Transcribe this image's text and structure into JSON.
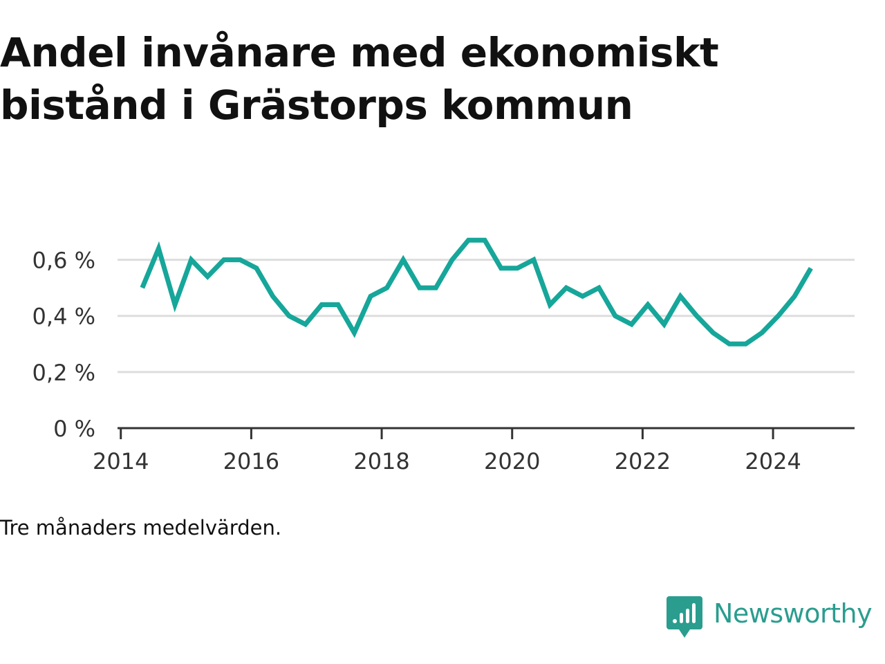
{
  "title": "Andel invånare med ekonomiskt bistånd i Grästorps kommun",
  "footnote": "Tre månaders medelvärden.",
  "brand": {
    "name": "Newsworthy",
    "icon": "newsworthy-logo-icon"
  },
  "colors": {
    "line": "#16a69a",
    "grid": "#dddddd",
    "axis": "#333333",
    "brand": "#2a9d8f"
  },
  "chart_data": {
    "type": "line",
    "title": "Andel invånare med ekonomiskt bistånd i Grästorps kommun",
    "xlabel": "",
    "ylabel": "",
    "xlim": [
      2013.95,
      2025.25
    ],
    "ylim": [
      0,
      0.7
    ],
    "x_ticks": [
      2014,
      2016,
      2018,
      2020,
      2022,
      2024
    ],
    "x_tick_labels": [
      "2014",
      "2016",
      "2018",
      "2020",
      "2022",
      "2024"
    ],
    "y_ticks": [
      0,
      0.2,
      0.4,
      0.6
    ],
    "y_tick_labels": [
      "0 %",
      "0,2 %",
      "0,4 %",
      "0,6 %"
    ],
    "grid": "horizontal",
    "legend": "none",
    "series": [
      {
        "x": [
          2014.33,
          2014.58,
          2014.83,
          2015.08,
          2015.33,
          2015.58,
          2015.83,
          2016.08,
          2016.33,
          2016.58,
          2016.83,
          2017.08,
          2017.33,
          2017.58,
          2017.83,
          2018.08,
          2018.33,
          2018.58,
          2018.83,
          2019.08,
          2019.33,
          2019.58,
          2019.83,
          2020.08,
          2020.33,
          2020.58,
          2020.83,
          2021.08,
          2021.33,
          2021.58,
          2021.83,
          2022.08,
          2022.33,
          2022.58,
          2022.83,
          2023.08,
          2023.33,
          2023.58,
          2023.83,
          2024.08,
          2024.33,
          2024.58
        ],
        "y": [
          0.5,
          0.64,
          0.44,
          0.6,
          0.54,
          0.6,
          0.6,
          0.57,
          0.47,
          0.4,
          0.37,
          0.44,
          0.44,
          0.34,
          0.47,
          0.5,
          0.6,
          0.5,
          0.5,
          0.6,
          0.67,
          0.67,
          0.57,
          0.57,
          0.6,
          0.44,
          0.5,
          0.47,
          0.5,
          0.4,
          0.37,
          0.44,
          0.37,
          0.47,
          0.4,
          0.34,
          0.3,
          0.3,
          0.34,
          0.4,
          0.47,
          0.57
        ]
      }
    ]
  }
}
